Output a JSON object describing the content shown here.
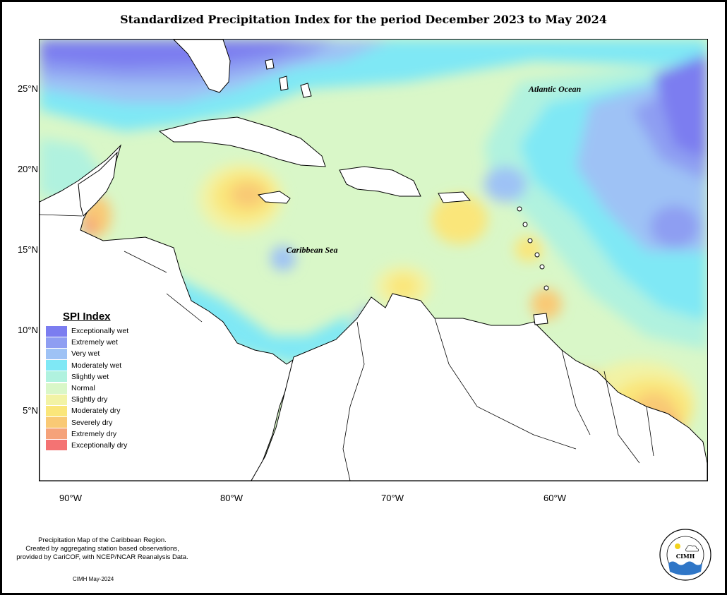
{
  "title": "Standardized Precipitation Index for the period December 2023 to May 2024",
  "labels": {
    "atlantic": "Atlantic Ocean",
    "caribbean": "Caribbean Sea"
  },
  "axes": {
    "y": [
      "25°N",
      "20°N",
      "15°N",
      "10°N",
      "5°N"
    ],
    "x": [
      "90°W",
      "80°W",
      "70°W",
      "60°W"
    ]
  },
  "legend": {
    "title": "SPI Index",
    "items": [
      {
        "label": "Exceptionally wet",
        "color": "#7b7df0"
      },
      {
        "label": "Extremely wet",
        "color": "#8e9ef2"
      },
      {
        "label": "Very wet",
        "color": "#9ec2f5"
      },
      {
        "label": "Moderately wet",
        "color": "#7fe8f5"
      },
      {
        "label": "Slightly wet",
        "color": "#b0f2df"
      },
      {
        "label": "Normal",
        "color": "#d9f7c8"
      },
      {
        "label": "Slightly dry",
        "color": "#f2f3a5"
      },
      {
        "label": "Moderately dry",
        "color": "#fae67a"
      },
      {
        "label": "Severely dry",
        "color": "#f9c975"
      },
      {
        "label": "Extremely dry",
        "color": "#f5a27a"
      },
      {
        "label": "Exceptionally dry",
        "color": "#f47373"
      }
    ]
  },
  "footnote": {
    "line1": "Precipitation Map of the Caribbean Region.",
    "line2": "Created by aggregating station based observations,",
    "line3": "provided by CariCOF, with NCEP/NCAR Reanalysis Data."
  },
  "credit": "CIMH May-2024",
  "logo": {
    "text": "CIMH",
    "ring_text": "Caribbean Institute for Meteorology and Hydrology"
  }
}
